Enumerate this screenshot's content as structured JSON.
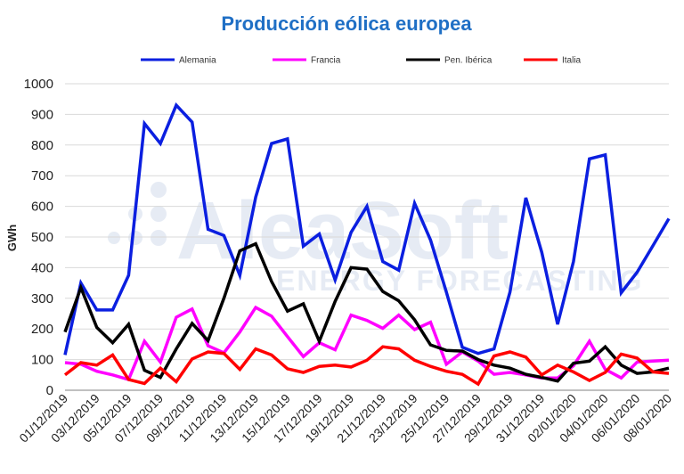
{
  "chart_data": {
    "type": "line",
    "title": "Producción eólica europea",
    "ylabel": "GWh",
    "xlabel": "",
    "ylim": [
      0,
      1000
    ],
    "yticks": [
      0,
      100,
      200,
      300,
      400,
      500,
      600,
      700,
      800,
      900,
      1000
    ],
    "grid": true,
    "legend_position": "top",
    "x": [
      "01/12/2019",
      "02/12/2019",
      "03/12/2019",
      "04/12/2019",
      "05/12/2019",
      "06/12/2019",
      "07/12/2019",
      "08/12/2019",
      "09/12/2019",
      "10/12/2019",
      "11/12/2019",
      "12/12/2019",
      "13/12/2019",
      "14/12/2019",
      "15/12/2019",
      "16/12/2019",
      "17/12/2019",
      "18/12/2019",
      "19/12/2019",
      "20/12/2019",
      "21/12/2019",
      "22/12/2019",
      "23/12/2019",
      "24/12/2019",
      "25/12/2019",
      "26/12/2019",
      "27/12/2019",
      "28/12/2019",
      "29/12/2019",
      "30/12/2019",
      "31/12/2019",
      "01/01/2020",
      "02/01/2020",
      "03/01/2020",
      "04/01/2020",
      "05/01/2020",
      "06/01/2020",
      "07/01/2020",
      "08/01/2020"
    ],
    "xtick_labels": [
      "01/12/2019",
      "03/12/2019",
      "05/12/2019",
      "07/12/2019",
      "09/12/2019",
      "11/12/2019",
      "13/12/2019",
      "15/12/2019",
      "17/12/2019",
      "19/12/2019",
      "21/12/2019",
      "23/12/2019",
      "25/12/2019",
      "27/12/2019",
      "29/12/2019",
      "31/12/2019",
      "02/01/2020",
      "04/01/2020",
      "06/01/2020",
      "08/01/2020"
    ],
    "series": [
      {
        "name": "Alemania",
        "color": "#0b1fe0",
        "values": [
          115,
          350,
          262,
          262,
          375,
          870,
          805,
          930,
          875,
          525,
          505,
          375,
          630,
          805,
          820,
          470,
          510,
          360,
          515,
          600,
          420,
          392,
          610,
          490,
          320,
          140,
          120,
          135,
          320,
          628,
          450,
          215,
          420,
          755,
          768,
          318,
          385,
          472,
          560
        ]
      },
      {
        "name": "Francia",
        "color": "#ff00ff",
        "values": [
          90,
          85,
          62,
          50,
          35,
          160,
          92,
          238,
          265,
          145,
          122,
          190,
          270,
          242,
          175,
          110,
          155,
          132,
          245,
          228,
          202,
          245,
          198,
          222,
          85,
          125,
          95,
          52,
          58,
          50,
          40,
          40,
          80,
          160,
          68,
          40,
          92,
          95,
          98
        ]
      },
      {
        "name": "Pen. Ibérica",
        "color": "#000000",
        "values": [
          190,
          335,
          205,
          155,
          215,
          65,
          42,
          135,
          218,
          162,
          300,
          455,
          478,
          355,
          258,
          282,
          160,
          290,
          400,
          395,
          322,
          292,
          230,
          148,
          130,
          128,
          100,
          82,
          72,
          52,
          42,
          30,
          88,
          95,
          142,
          82,
          55,
          60,
          72
        ]
      },
      {
        "name": "Italia",
        "color": "#ff0000",
        "values": [
          50,
          90,
          82,
          115,
          35,
          22,
          72,
          28,
          102,
          125,
          120,
          68,
          135,
          115,
          70,
          58,
          78,
          82,
          76,
          98,
          142,
          135,
          98,
          78,
          62,
          52,
          20,
          112,
          125,
          108,
          50,
          82,
          60,
          32,
          58,
          118,
          105,
          60,
          55
        ]
      }
    ]
  },
  "watermark": {
    "brand": "AleaSoft",
    "tagline": "ENERGY FORECASTING"
  }
}
